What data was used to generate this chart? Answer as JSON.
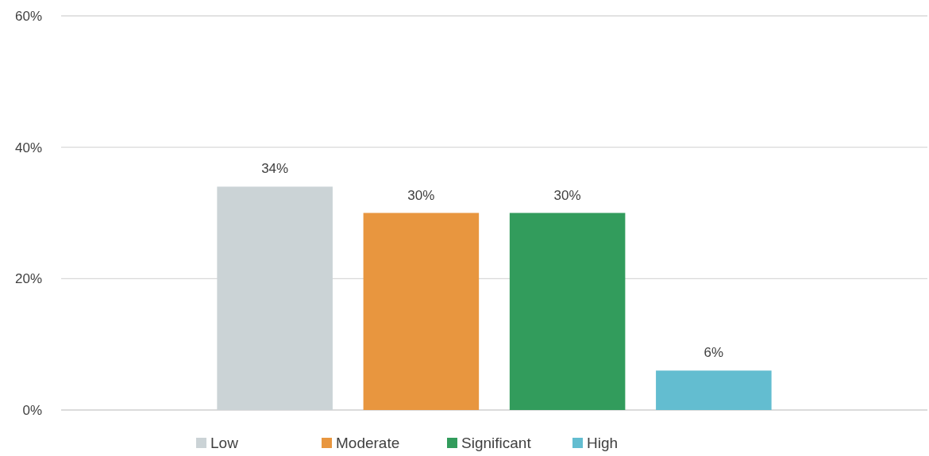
{
  "chart_data": {
    "type": "bar",
    "categories": [
      null
    ],
    "series": [
      {
        "name": "Low",
        "color": "#cbd3d6",
        "values": [
          34
        ],
        "value_labels": [
          "34%"
        ]
      },
      {
        "name": "Moderate",
        "color": "#e8963f",
        "values": [
          30
        ],
        "value_labels": [
          "30%"
        ]
      },
      {
        "name": "Significant",
        "color": "#329c5c",
        "values": [
          30
        ],
        "value_labels": [
          "30%"
        ]
      },
      {
        "name": "High",
        "color": "#63bdd0",
        "values": [
          6
        ],
        "value_labels": [
          "6%"
        ]
      }
    ],
    "ylim": [
      0,
      60
    ],
    "yticks": [
      {
        "value": 0,
        "label": "0%"
      },
      {
        "value": 20,
        "label": "20%"
      },
      {
        "value": 40,
        "label": "40%"
      },
      {
        "value": 60,
        "label": "60%"
      }
    ],
    "grid": "y",
    "legend": "bottom"
  }
}
